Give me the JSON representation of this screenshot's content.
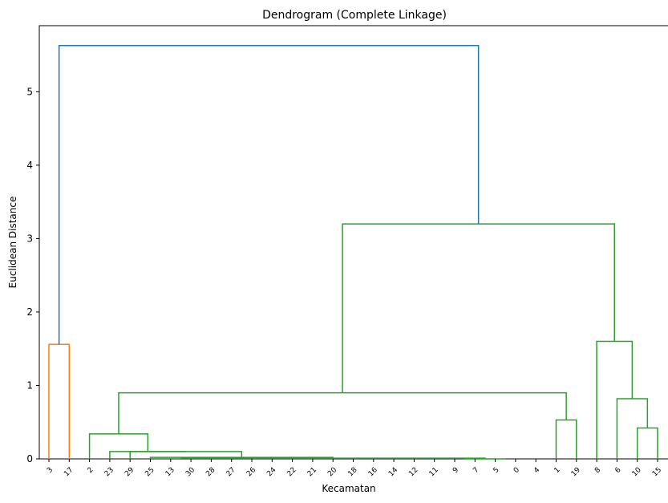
{
  "chart_data": {
    "type": "dendrogram",
    "title": "Dendrogram (Complete Linkage)",
    "xlabel": "Kecamatan",
    "ylabel": "Euclidean Distance",
    "ylim": [
      0,
      5.9
    ],
    "yticks": [
      "0",
      "1",
      "2",
      "3",
      "4",
      "5"
    ],
    "leaves": [
      "3",
      "17",
      "2",
      "23",
      "29",
      "25",
      "13",
      "30",
      "28",
      "27",
      "26",
      "24",
      "22",
      "21",
      "20",
      "18",
      "16",
      "14",
      "12",
      "11",
      "9",
      "7",
      "5",
      "0",
      "4",
      "1",
      "19",
      "8",
      "6",
      "10",
      "15"
    ],
    "colors": {
      "cluster_1": "#ff7f0e",
      "cluster_2": "#2ca02c",
      "above_threshold": "#1f77b4"
    },
    "merges": [
      {
        "left": 0,
        "right": 1,
        "height": 1.56,
        "color": "cluster_1"
      },
      {
        "left": 20.5,
        "right": 22.5,
        "height": 0.0,
        "color": "cluster_2"
      },
      {
        "left": 6.5,
        "right": 21.5,
        "height": 0.01,
        "color": "cluster_2"
      },
      {
        "left": 5,
        "right": 14,
        "height": 0.02,
        "color": "cluster_2"
      },
      {
        "left": 4,
        "right": 9.5,
        "height": 0.1,
        "color": "cluster_2"
      },
      {
        "left": 3,
        "right": 6.75,
        "height": 0.1,
        "color": "cluster_2"
      },
      {
        "left": 2,
        "right": 4.875,
        "height": 0.34,
        "color": "cluster_2"
      },
      {
        "left": 25,
        "right": 26,
        "height": 0.53,
        "color": "cluster_2"
      },
      {
        "left": 3.4375,
        "right": 25.5,
        "height": 0.9,
        "color": "cluster_2"
      },
      {
        "left": 29,
        "right": 30,
        "height": 0.42,
        "color": "cluster_2"
      },
      {
        "left": 28,
        "right": 29.5,
        "height": 0.82,
        "color": "cluster_2"
      },
      {
        "left": 27,
        "right": 28.75,
        "height": 1.6,
        "color": "cluster_2"
      },
      {
        "left": 14.46875,
        "right": 27.875,
        "height": 3.2,
        "color": "cluster_2"
      },
      {
        "left": 0.5,
        "right": 21.171875,
        "height": 5.63,
        "color": "above_threshold"
      }
    ]
  }
}
